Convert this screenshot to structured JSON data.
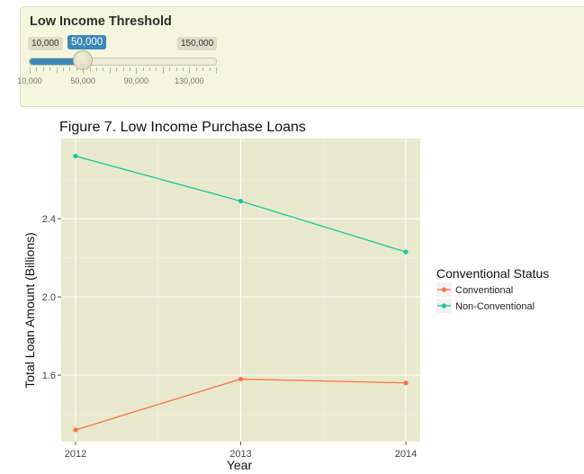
{
  "slider": {
    "title": "Low Income Threshold",
    "min": 10000,
    "max": 150000,
    "value": 50000,
    "min_label": "10,000",
    "max_label": "150,000",
    "value_label": "50,000",
    "tick_labels": [
      "10,000",
      "50,000",
      "90,000",
      "130,000"
    ],
    "tick_values": [
      10000,
      50000,
      90000,
      130000
    ],
    "accent_color": "#3c88b8"
  },
  "chart_data": {
    "type": "line",
    "title": "Figure 7. Low Income Purchase Loans",
    "xlabel": "Year",
    "ylabel": "Total Loan Amount (Billions)",
    "x": [
      "2012",
      "2013",
      "2014"
    ],
    "yticks": [
      "1.6",
      "2.0",
      "2.4"
    ],
    "ylim": [
      1.26,
      2.81
    ],
    "grid": true,
    "background": "#e8e8cc",
    "legend_title": "Conventional Status",
    "legend_position": "right",
    "series": [
      {
        "name": "Conventional",
        "values": [
          1.32,
          1.58,
          1.56
        ],
        "color": "#fc6f4a"
      },
      {
        "name": "Non-Conventional",
        "values": [
          2.72,
          2.49,
          2.23
        ],
        "color": "#17c89b"
      }
    ]
  }
}
